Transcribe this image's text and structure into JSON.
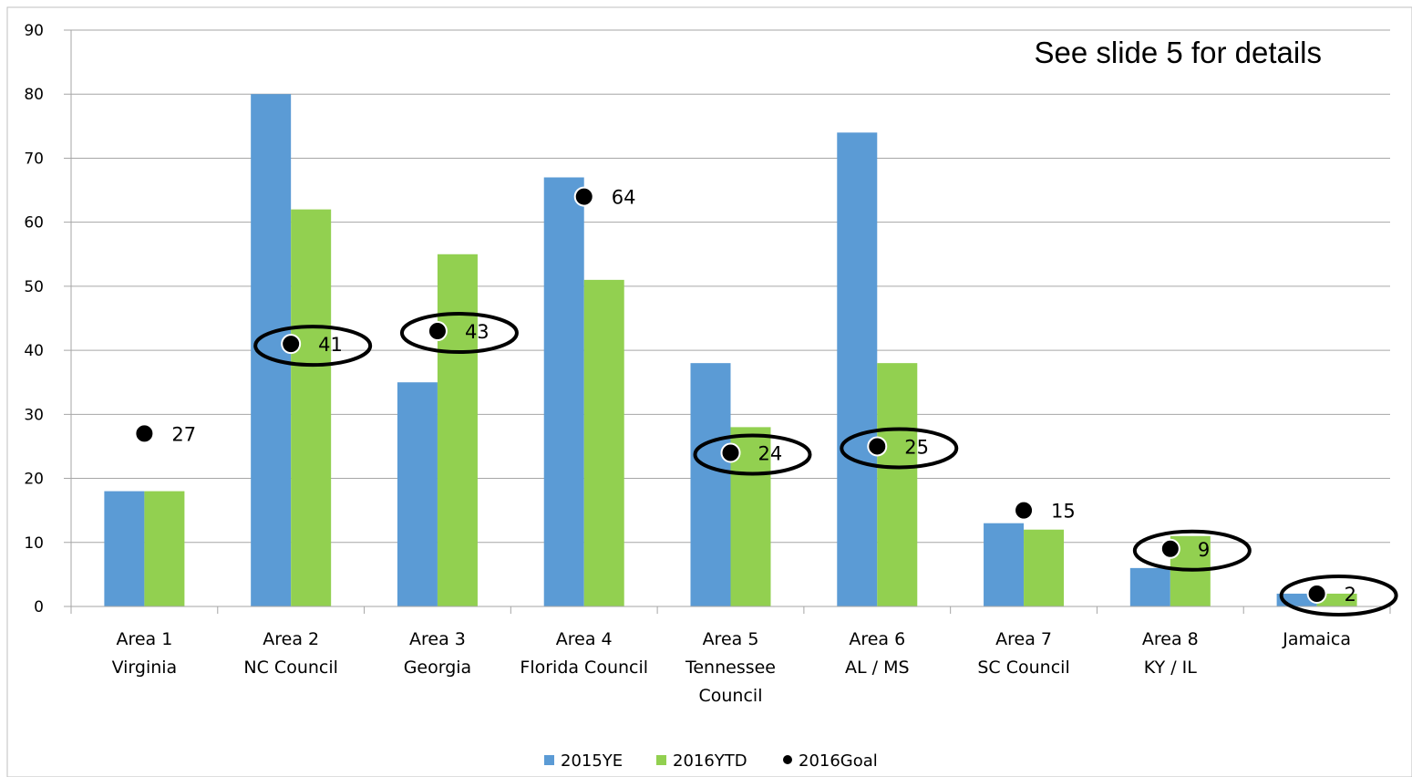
{
  "annotation": "See slide 5 for details",
  "colors": {
    "series_2015": "#5B9BD5",
    "series_2016": "#92D050",
    "goal": "#000000",
    "grid": "#A6A6A6"
  },
  "chart_data": {
    "type": "bar",
    "categories": [
      [
        "Area 1",
        "Virginia"
      ],
      [
        "Area 2",
        "NC Council"
      ],
      [
        "Area 3",
        "Georgia"
      ],
      [
        "Area 4",
        "Florida Council"
      ],
      [
        "Area 5",
        "Tennessee",
        "Council"
      ],
      [
        "Area 6",
        "AL / MS"
      ],
      [
        "Area 7",
        "SC Council"
      ],
      [
        "Area 8",
        "KY / IL"
      ],
      [
        "Jamaica"
      ]
    ],
    "series": [
      {
        "name": "2015YE",
        "kind": "bar",
        "values": [
          18,
          80,
          35,
          67,
          38,
          74,
          13,
          6,
          2
        ]
      },
      {
        "name": "2016YTD",
        "kind": "bar",
        "values": [
          18,
          62,
          55,
          51,
          28,
          38,
          12,
          11,
          2
        ]
      },
      {
        "name": "2016Goal",
        "kind": "marker",
        "values": [
          27,
          41,
          43,
          64,
          24,
          25,
          15,
          9,
          2
        ]
      }
    ],
    "goal_labels": [
      "27",
      "41",
      "43",
      "64",
      "24",
      "25",
      "15",
      "9",
      "2"
    ],
    "circled_goals": [
      1,
      2,
      4,
      5,
      7,
      8
    ],
    "ylim": [
      0,
      90
    ],
    "yticks": [
      "0",
      "10",
      "20",
      "30",
      "40",
      "50",
      "60",
      "70",
      "80",
      "90"
    ],
    "grid": true,
    "legend": "bottom"
  }
}
